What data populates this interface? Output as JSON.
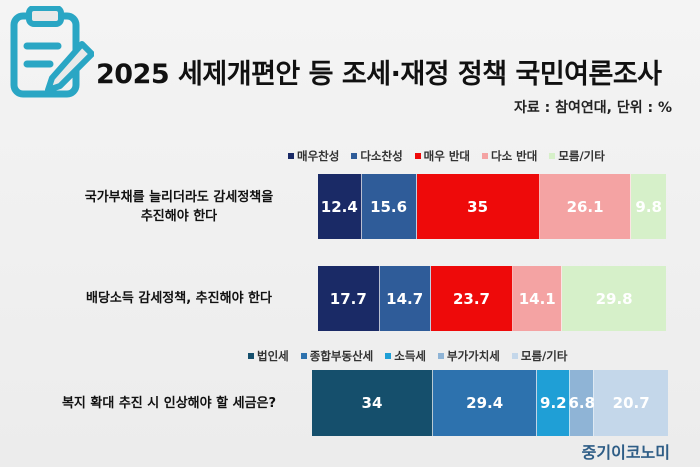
{
  "title": "2025 세제개편안 등 조세·재정 정책 국민여론조사",
  "source": "자료 : 참여연대, 단위 : %",
  "brand": "중기이코노미",
  "icon": "clipboard-pencil-icon",
  "chart_data": [
    {
      "type": "bar",
      "orientation": "horizontal-stacked",
      "legend": [
        {
          "name": "매우찬성",
          "color": "#1a2a66"
        },
        {
          "name": "다소찬성",
          "color": "#2f5c99"
        },
        {
          "name": "매우 반대",
          "color": "#ee0a0a"
        },
        {
          "name": "다소 반대",
          "color": "#f4a3a3"
        },
        {
          "name": "모름/기타",
          "color": "#d6f0c9"
        }
      ],
      "rows": [
        {
          "label_lines": [
            "국가부채를 늘리더라도 감세정책을",
            "추진해야 한다"
          ],
          "values": [
            12.4,
            15.6,
            35,
            26.1,
            9.8
          ],
          "labels": [
            "12.4",
            "15.6",
            "35",
            "26.1",
            "9.8"
          ]
        },
        {
          "label_lines": [
            "배당소득 감세정책, 추진해야 한다"
          ],
          "values": [
            17.7,
            14.7,
            23.7,
            14.1,
            29.8
          ],
          "labels": [
            "17.7",
            "14.7",
            "23.7",
            "14.1",
            "29.8"
          ]
        }
      ]
    },
    {
      "type": "bar",
      "orientation": "horizontal-stacked",
      "legend": [
        {
          "name": "법인세",
          "color": "#154f6c"
        },
        {
          "name": "종합부동산세",
          "color": "#2d72ae"
        },
        {
          "name": "소득세",
          "color": "#1f9fd6"
        },
        {
          "name": "부가가치세",
          "color": "#8fb4d6"
        },
        {
          "name": "모름/기타",
          "color": "#c4d7ea"
        }
      ],
      "rows": [
        {
          "label_lines": [
            "복지 확대 추진 시 인상해야 할 세금은?"
          ],
          "values": [
            34,
            29.4,
            9.2,
            6.8,
            20.7
          ],
          "labels": [
            "34",
            "29.4",
            "9.2",
            "6.8",
            "20.7"
          ]
        }
      ]
    }
  ]
}
